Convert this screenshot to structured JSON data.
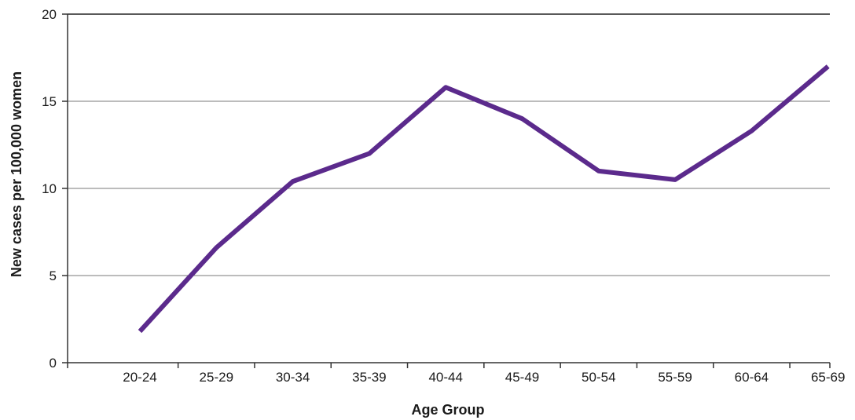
{
  "chart_data": {
    "type": "line",
    "title": "",
    "xlabel": "Age Group",
    "ylabel": "New cases per 100,000 women",
    "categories": [
      "20-24",
      "25-29",
      "30-34",
      "35-39",
      "40-44",
      "45-49",
      "50-54",
      "55-59",
      "60-64",
      "65-69"
    ],
    "series": [
      {
        "values": [
          1.8,
          6.6,
          10.4,
          12.0,
          15.8,
          14.0,
          11.0,
          10.5,
          13.3,
          17.0
        ],
        "color": "#5b2a8c"
      }
    ],
    "ylim": [
      0,
      20
    ],
    "yticks": [
      "0",
      "5",
      "10",
      "15",
      "20"
    ],
    "grid": true,
    "legend": "none"
  }
}
